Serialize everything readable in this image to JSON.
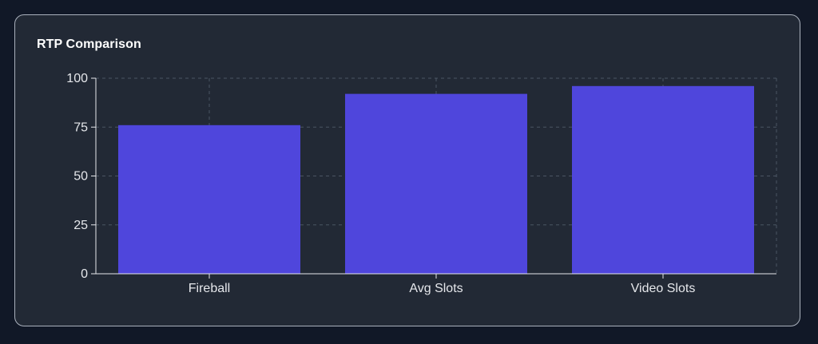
{
  "card": {
    "title": "RTP Comparison"
  },
  "chart_data": {
    "type": "bar",
    "title": "RTP Comparison",
    "categories": [
      "Fireball",
      "Avg Slots",
      "Video Slots"
    ],
    "values": [
      76,
      92,
      96
    ],
    "xlabel": "",
    "ylabel": "",
    "ylim": [
      0,
      100
    ],
    "yticks": [
      0,
      25,
      50,
      75,
      100
    ],
    "grid": true,
    "legend": "none",
    "colors": {
      "bar": "#4f46dc",
      "grid": "#4b5563",
      "axis": "#e5e7eb",
      "text": "#e5e7eb"
    }
  }
}
